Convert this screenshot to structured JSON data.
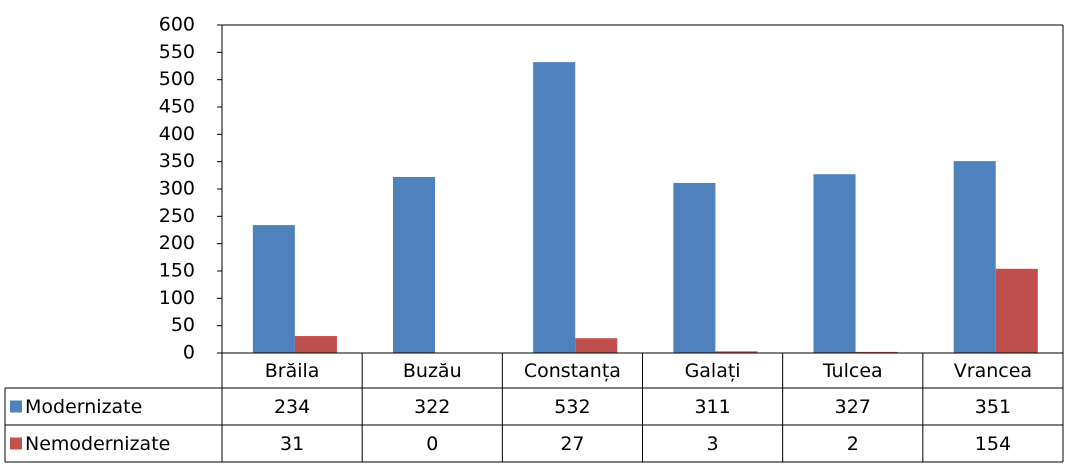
{
  "chart_data": {
    "type": "bar",
    "categories": [
      "Brăila",
      "Buzău",
      "Constanța",
      "Galați",
      "Tulcea",
      "Vrancea"
    ],
    "series": [
      {
        "name": "Modernizate",
        "color": "#4f81bd",
        "values": [
          234,
          322,
          532,
          311,
          327,
          351
        ]
      },
      {
        "name": "Nemodernizate",
        "color": "#c0504d",
        "values": [
          31,
          0,
          27,
          3,
          2,
          154
        ]
      }
    ],
    "ylim": [
      0,
      600
    ],
    "yticks": [
      0,
      50,
      100,
      150,
      200,
      250,
      300,
      350,
      400,
      450,
      500,
      550,
      600
    ],
    "grid": false
  }
}
